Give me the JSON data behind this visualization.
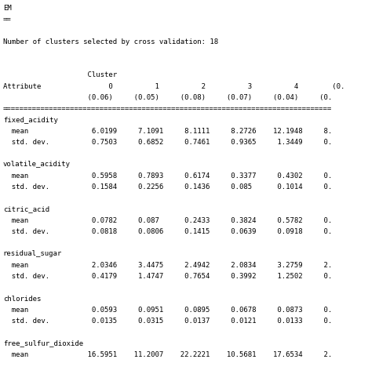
{
  "lines": [
    "EM",
    "==",
    "",
    "Number of clusters selected by cross validation: 18",
    "",
    "",
    "                    Cluster",
    "Attribute                0          1          2          3          4        (0.",
    "                    (0.06)     (0.05)     (0.08)     (0.07)     (0.04)     (0.",
    "==============================================================================",
    "fixed_acidity",
    "  mean               6.0199     7.1091     8.1111     8.2726    12.1948     8.",
    "  std. dev.          0.7503     0.6852     0.7461     0.9365     1.3449     0.",
    "",
    "volatile_acidity",
    "  mean               0.5958     0.7893     0.6174     0.3377     0.4302     0.",
    "  std. dev.          0.1584     0.2256     0.1436     0.085      0.1014     0.",
    "",
    "citric_acid",
    "  mean               0.0782     0.087      0.2433     0.3824     0.5782     0.",
    "  std. dev.          0.0818     0.0806     0.1415     0.0639     0.0918     0.",
    "",
    "residual_sugar",
    "  mean               2.0346     3.4475     2.4942     2.0834     3.2759     2.",
    "  std. dev.          0.4179     1.4747     0.7654     0.3992     1.2502     0.",
    "",
    "chlorides",
    "  mean               0.0593     0.0951     0.0895     0.0678     0.0873     0.",
    "  std. dev.          0.0135     0.0315     0.0137     0.0121     0.0133     0.",
    "",
    "free_sulfur_dioxide",
    "  mean              16.5951    11.2007    22.2221    10.5681    17.6534     2."
  ],
  "bg_color": "#ffffff",
  "text_color": "#000000",
  "font_size": 6.5,
  "font_family": "monospace"
}
